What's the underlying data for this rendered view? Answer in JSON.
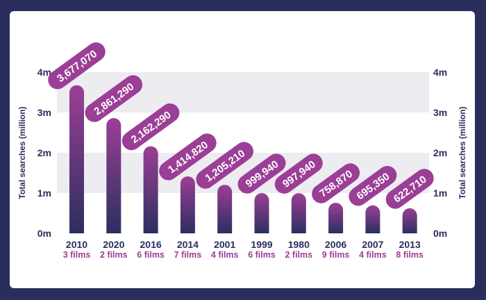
{
  "chart_data": {
    "type": "bar",
    "categories": [
      "2010",
      "2020",
      "2016",
      "2014",
      "2001",
      "1999",
      "1980",
      "2006",
      "2007",
      "2013"
    ],
    "subcategory_labels": [
      "3 films",
      "2 films",
      "6 films",
      "7 films",
      "4 films",
      "6 films",
      "2 films",
      "9 films",
      "4 films",
      "8 films"
    ],
    "values": [
      3677070,
      2861290,
      2162290,
      1414820,
      1205210,
      999940,
      997940,
      758870,
      695350,
      622710
    ],
    "value_labels": [
      "3,677,070",
      "2,861,290",
      "2,162,290",
      "1,414,820",
      "1,205,210",
      "999,940",
      "997,940",
      "758,870",
      "695,350",
      "622,710"
    ],
    "ylabel": "Total searches (million)",
    "y2label": "Total searches (million)",
    "ylim": [
      0,
      4000000
    ],
    "yticks": [
      0,
      1000000,
      2000000,
      3000000,
      4000000
    ],
    "ytick_labels": [
      "0m",
      "1m",
      "2m",
      "3m",
      "4m"
    ],
    "grid": "alternating horizontal bands",
    "colors": {
      "background": "#2a2e5c",
      "card": "#ffffff",
      "band": "#ececf1",
      "bar_top": "#9c3f96",
      "bar_bottom": "#2b2f5f",
      "value_pill": "#9b3e96",
      "text": "#2a2e5c",
      "sub_text": "#9b3e96"
    }
  }
}
